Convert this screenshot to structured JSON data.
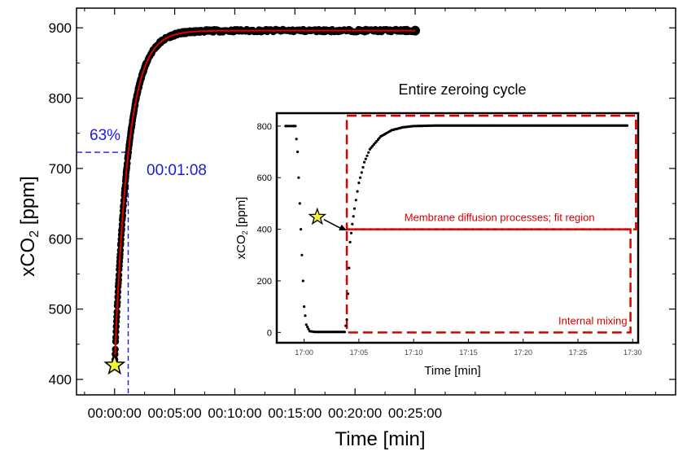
{
  "colors": {
    "data": "#000000",
    "fit": "#e00000",
    "threshold": "#1a1adb",
    "region": "#dd0000",
    "marker": "#f2f23a"
  },
  "chart_data": [
    {
      "type": "scatter",
      "title": "",
      "xlabel_main": "Time [min]",
      "ylabel_prefix": "xCO",
      "ylabel_sub": "2",
      "ylabel_suffix": " [ppm]",
      "xlim": [
        -190,
        2800
      ],
      "ylim": [
        378,
        928
      ],
      "xticks": [
        0,
        300,
        600,
        900,
        1200,
        1500
      ],
      "xtick_labels": [
        "00:00:00",
        "00:05:00",
        "00:10:00",
        "00:15:00",
        "00:20:00",
        "00:25:00"
      ],
      "yticks": [
        400,
        500,
        600,
        700,
        800,
        900
      ],
      "ytick_labels": [
        "400",
        "500",
        "600",
        "700",
        "800",
        "900"
      ],
      "fit": {
        "model": "exponential",
        "start_s": 0,
        "y0": 420,
        "y_end": 896,
        "tau_s": 68
      },
      "data_end_s": 1500,
      "start_marker": {
        "x": 0,
        "y": 420
      },
      "threshold": {
        "x": 68,
        "y": 723,
        "percent_label": "63%",
        "time_label": "00:01:08"
      },
      "series": [
        {
          "values": [
            [
              0,
              420
            ],
            [
              15,
              525
            ],
            [
              30,
              599
            ],
            [
              45,
              659
            ],
            [
              60,
              705
            ],
            [
              68,
              723
            ],
            [
              80,
              745
            ],
            [
              100,
              774
            ],
            [
              130,
              806
            ],
            [
              160,
              830
            ],
            [
              200,
              852
            ],
            [
              250,
              869
            ],
            [
              300,
              880
            ],
            [
              360,
              887
            ],
            [
              420,
              891
            ],
            [
              500,
              894
            ],
            [
              600,
              895
            ],
            [
              700,
              896
            ],
            [
              800,
              896
            ],
            [
              900,
              896
            ],
            [
              1000,
              897
            ],
            [
              1100,
              897
            ],
            [
              1200,
              897
            ],
            [
              1300,
              897
            ],
            [
              1400,
              897
            ],
            [
              1500,
              897
            ]
          ]
        }
      ]
    },
    {
      "type": "scatter",
      "title": "Entire zeroing cycle",
      "xlabel": "Time [min]",
      "ylabel_prefix": "xCO",
      "ylabel_sub": "2",
      "ylabel_suffix": " [ppm]",
      "xlim": [
        -2.5,
        30.5
      ],
      "ylim": [
        -40,
        850
      ],
      "xticks": [
        0,
        5,
        10,
        15,
        20,
        25,
        30
      ],
      "xtick_labels": [
        "17:00",
        "17:05",
        "17:10",
        "17:15",
        "17:20",
        "17:25",
        "17:30"
      ],
      "yticks": [
        0,
        200,
        400,
        600,
        800
      ],
      "ytick_labels": [
        "0",
        "200",
        "400",
        "600",
        "800"
      ],
      "start_marker": {
        "x": 1.2,
        "y": 400
      },
      "regions": [
        {
          "label": "Membrane diffusion processes; fit region",
          "x": [
            3.9,
            30.3
          ],
          "y": [
            400,
            840
          ]
        },
        {
          "label": "Internal mixing",
          "x": [
            3.9,
            29.8
          ],
          "y": [
            0,
            400
          ]
        }
      ],
      "series": [
        {
          "values": [
            [
              -1.7,
              800
            ],
            [
              -1.4,
              800
            ],
            [
              -1.1,
              800
            ],
            [
              -0.8,
              800
            ],
            [
              -0.6,
              700
            ],
            [
              -0.5,
              600
            ],
            [
              -0.4,
              500
            ],
            [
              -0.3,
              400
            ],
            [
              -0.2,
              300
            ],
            [
              -0.1,
              200
            ],
            [
              0,
              100
            ],
            [
              0.2,
              30
            ],
            [
              0.5,
              5
            ],
            [
              1,
              2
            ],
            [
              2,
              2
            ],
            [
              3,
              2
            ],
            [
              3.7,
              2
            ],
            [
              3.9,
              50
            ],
            [
              4.0,
              150
            ],
            [
              4.1,
              250
            ],
            [
              4.2,
              350
            ],
            [
              4.4,
              420
            ],
            [
              4.6,
              480
            ],
            [
              5,
              580
            ],
            [
              5.5,
              660
            ],
            [
              6,
              710
            ],
            [
              7,
              760
            ],
            [
              8,
              784
            ],
            [
              9,
              795
            ],
            [
              10,
              800
            ],
            [
              12,
              802
            ],
            [
              15,
              802
            ],
            [
              18,
              802
            ],
            [
              22,
              802
            ],
            [
              26,
              802
            ],
            [
              29.5,
              802
            ]
          ]
        }
      ]
    }
  ]
}
